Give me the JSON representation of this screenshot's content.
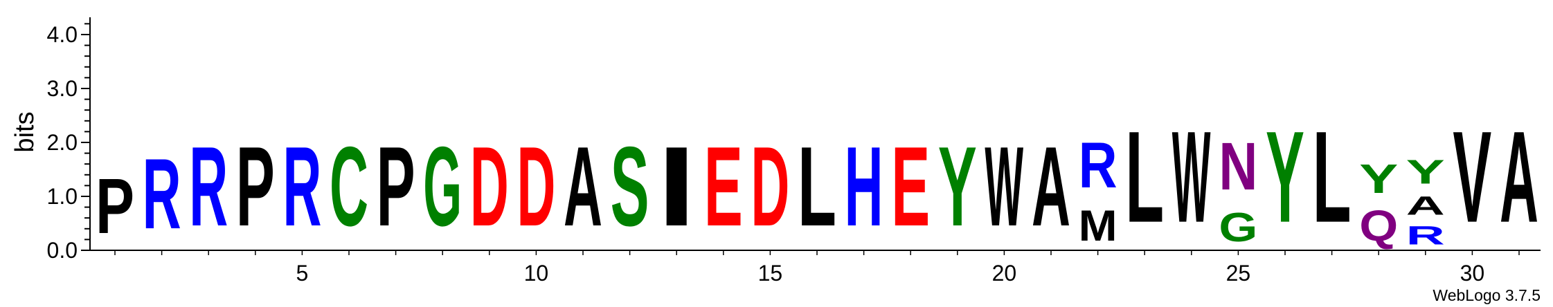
{
  "chart_data": {
    "type": "sequence-logo",
    "ylabel": "bits",
    "ylim": [
      0,
      4.32
    ],
    "yticks": [
      {
        "value": 0.0,
        "label": "0.0"
      },
      {
        "value": 1.0,
        "label": "1.0"
      },
      {
        "value": 2.0,
        "label": "2.0"
      },
      {
        "value": 3.0,
        "label": "3.0"
      },
      {
        "value": 4.0,
        "label": "4.0"
      }
    ],
    "xticks": [
      {
        "position": 5,
        "label": "5"
      },
      {
        "position": 10,
        "label": "10"
      },
      {
        "position": 15,
        "label": "15"
      },
      {
        "position": 20,
        "label": "20"
      },
      {
        "position": 25,
        "label": "25"
      },
      {
        "position": 30,
        "label": "30"
      }
    ],
    "positions": 31,
    "colors": {
      "blue": "#0000ff",
      "black": "#000000",
      "green": "#008000",
      "red": "#ff0000",
      "purple": "#800080"
    },
    "stacks": [
      {
        "position": 1,
        "letters": [
          {
            "char": "P",
            "height": 1.62,
            "color": "black"
          }
        ]
      },
      {
        "position": 2,
        "letters": [
          {
            "char": "R",
            "height": 2.08,
            "color": "blue"
          }
        ]
      },
      {
        "position": 3,
        "letters": [
          {
            "char": "R",
            "height": 2.35,
            "color": "blue"
          }
        ]
      },
      {
        "position": 4,
        "letters": [
          {
            "char": "P",
            "height": 2.35,
            "color": "black"
          }
        ]
      },
      {
        "position": 5,
        "letters": [
          {
            "char": "R",
            "height": 2.35,
            "color": "blue"
          }
        ]
      },
      {
        "position": 6,
        "letters": [
          {
            "char": "C",
            "height": 2.35,
            "color": "green"
          }
        ]
      },
      {
        "position": 7,
        "letters": [
          {
            "char": "P",
            "height": 2.35,
            "color": "black"
          }
        ]
      },
      {
        "position": 8,
        "letters": [
          {
            "char": "G",
            "height": 2.35,
            "color": "green"
          }
        ]
      },
      {
        "position": 9,
        "letters": [
          {
            "char": "D",
            "height": 2.35,
            "color": "red"
          }
        ]
      },
      {
        "position": 10,
        "letters": [
          {
            "char": "D",
            "height": 2.35,
            "color": "red"
          }
        ]
      },
      {
        "position": 11,
        "letters": [
          {
            "char": "A",
            "height": 2.35,
            "color": "black"
          }
        ]
      },
      {
        "position": 12,
        "letters": [
          {
            "char": "S",
            "height": 2.35,
            "color": "green"
          }
        ]
      },
      {
        "position": 13,
        "letters": [
          {
            "char": "I",
            "height": 2.35,
            "color": "black"
          }
        ]
      },
      {
        "position": 14,
        "letters": [
          {
            "char": "E",
            "height": 2.35,
            "color": "red"
          }
        ]
      },
      {
        "position": 15,
        "letters": [
          {
            "char": "D",
            "height": 2.35,
            "color": "red"
          }
        ]
      },
      {
        "position": 16,
        "letters": [
          {
            "char": "L",
            "height": 2.35,
            "color": "black"
          }
        ]
      },
      {
        "position": 17,
        "letters": [
          {
            "char": "H",
            "height": 2.35,
            "color": "blue"
          }
        ]
      },
      {
        "position": 18,
        "letters": [
          {
            "char": "E",
            "height": 2.35,
            "color": "red"
          }
        ]
      },
      {
        "position": 19,
        "letters": [
          {
            "char": "Y",
            "height": 2.35,
            "color": "green"
          }
        ]
      },
      {
        "position": 20,
        "letters": [
          {
            "char": "W",
            "height": 2.35,
            "color": "black"
          }
        ]
      },
      {
        "position": 21,
        "letters": [
          {
            "char": "A",
            "height": 2.35,
            "color": "black"
          }
        ]
      },
      {
        "position": 22,
        "letters": [
          {
            "char": "M",
            "height": 0.9,
            "color": "black"
          },
          {
            "char": "R",
            "height": 1.35,
            "color": "blue"
          }
        ]
      },
      {
        "position": 23,
        "letters": [
          {
            "char": "L",
            "height": 2.7,
            "color": "black"
          }
        ]
      },
      {
        "position": 24,
        "letters": [
          {
            "char": "W",
            "height": 2.7,
            "color": "black"
          }
        ]
      },
      {
        "position": 25,
        "letters": [
          {
            "char": "G",
            "height": 0.85,
            "color": "green"
          },
          {
            "char": "N",
            "height": 1.4,
            "color": "purple"
          }
        ]
      },
      {
        "position": 26,
        "letters": [
          {
            "char": "Y",
            "height": 2.7,
            "color": "green"
          }
        ]
      },
      {
        "position": 27,
        "letters": [
          {
            "char": "L",
            "height": 2.7,
            "color": "black"
          }
        ]
      },
      {
        "position": 28,
        "letters": [
          {
            "char": "Q",
            "height": 0.9,
            "color": "purple"
          },
          {
            "char": "Y",
            "height": 0.85,
            "color": "green"
          }
        ]
      },
      {
        "position": 29,
        "letters": [
          {
            "char": "R",
            "height": 0.55,
            "color": "blue"
          },
          {
            "char": "A",
            "height": 0.55,
            "color": "black"
          },
          {
            "char": "Y",
            "height": 0.7,
            "color": "green"
          }
        ]
      },
      {
        "position": 30,
        "letters": [
          {
            "char": "V",
            "height": 2.7,
            "color": "black"
          }
        ]
      },
      {
        "position": 31,
        "letters": [
          {
            "char": "A",
            "height": 2.7,
            "color": "black"
          }
        ]
      }
    ]
  },
  "footer": {
    "credit": "WebLogo 3.7.5"
  }
}
